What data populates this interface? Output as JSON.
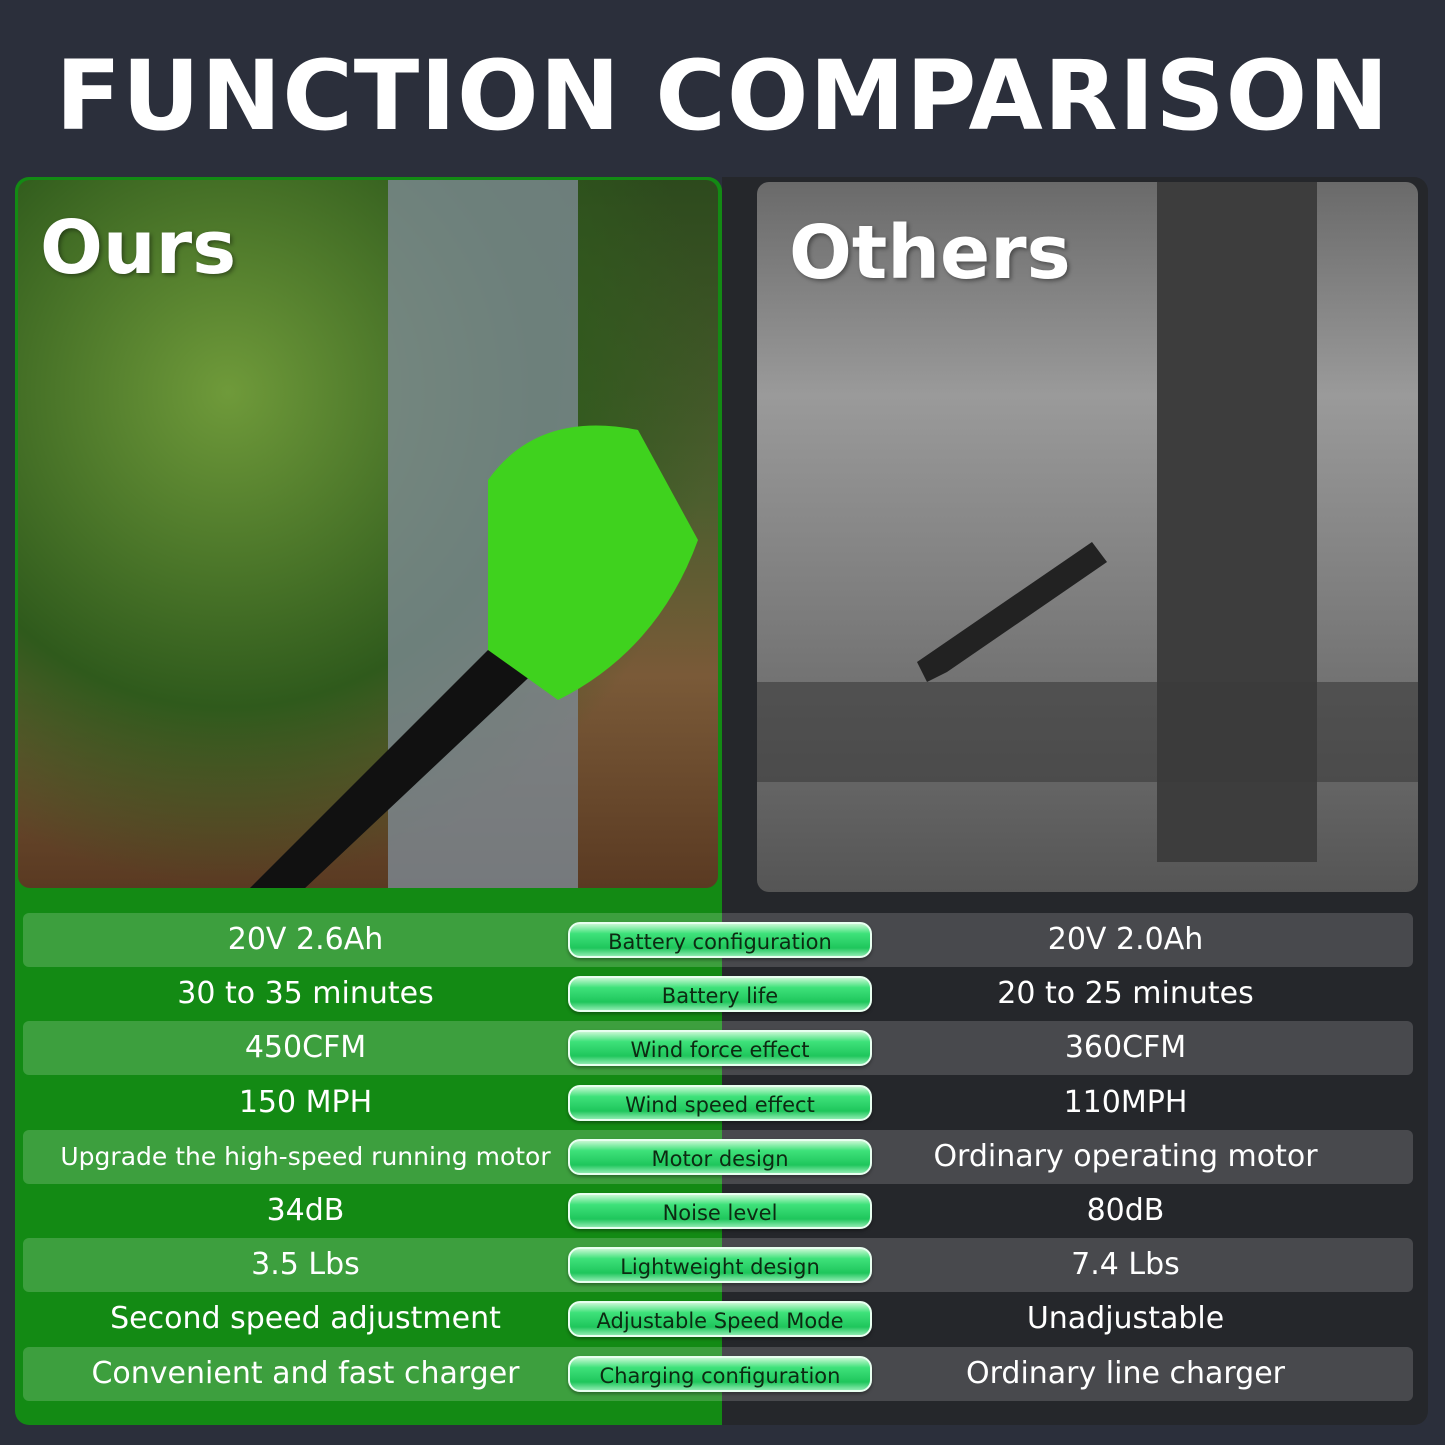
{
  "title": "FUNCTION COMPARISON",
  "ours": {
    "label": "Ours",
    "accent": "#138a14"
  },
  "others": {
    "label": "Others",
    "background": "#25272b"
  },
  "rows": [
    {
      "feature": "Battery configuration",
      "ours": "20V 2.6Ah",
      "others": "20V 2.0Ah"
    },
    {
      "feature": "Battery life",
      "ours": "30 to 35 minutes",
      "others": "20 to 25 minutes"
    },
    {
      "feature": "Wind force effect",
      "ours": "450CFM",
      "others": "360CFM"
    },
    {
      "feature": "Wind speed effect",
      "ours": "150 MPH",
      "others": "110MPH"
    },
    {
      "feature": "Motor design",
      "ours": "Upgrade the high-speed running motor",
      "others": "Ordinary operating motor"
    },
    {
      "feature": "Noise level",
      "ours": "34dB",
      "others": "80dB"
    },
    {
      "feature": "Lightweight design",
      "ours": "3.5 Lbs",
      "others": "7.4 Lbs"
    },
    {
      "feature": "Adjustable Speed Mode",
      "ours": "Second speed adjustment",
      "others": "Unadjustable"
    },
    {
      "feature": "Charging configuration",
      "ours": "Convenient and fast charger",
      "others": "Ordinary line charger"
    }
  ]
}
